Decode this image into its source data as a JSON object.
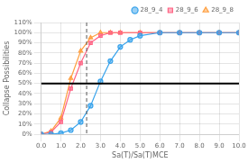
{
  "chart_data": {
    "type": "line",
    "xlabel": "Sa(T)/Sa(T)MCE",
    "ylabel": "Collapse Possibilities",
    "series": [
      {
        "name": "28_9_4",
        "marker": "circle",
        "x": [
          0.0,
          0.5,
          1.0,
          1.5,
          2.0,
          2.5,
          3.0,
          3.5,
          4.0,
          4.5,
          5.0,
          6.0,
          7.0,
          8.0,
          9.0,
          10.0
        ],
        "values": [
          0.0,
          0.0,
          0.01,
          0.04,
          0.12,
          0.28,
          0.52,
          0.72,
          0.86,
          0.93,
          0.97,
          1.0,
          1.0,
          1.0,
          1.0,
          1.0
        ]
      },
      {
        "name": "28_9_6",
        "marker": "square",
        "x": [
          0.0,
          0.5,
          1.0,
          1.5,
          2.0,
          2.5,
          3.0,
          3.5,
          4.0,
          5.0,
          6.0,
          7.0,
          8.0,
          9.0,
          10.0
        ],
        "values": [
          0.0,
          0.02,
          0.12,
          0.45,
          0.7,
          0.9,
          0.97,
          1.0,
          1.0,
          1.0,
          1.0,
          1.0,
          1.0,
          1.0,
          1.0
        ]
      },
      {
        "name": "28_9_8",
        "marker": "triangle",
        "x": [
          0.0,
          0.5,
          1.0,
          1.5,
          2.0,
          2.5,
          3.0,
          3.5,
          4.0,
          5.0,
          6.0,
          7.0,
          8.0,
          9.0,
          10.0
        ],
        "values": [
          0.0,
          0.03,
          0.16,
          0.55,
          0.82,
          0.95,
          1.0,
          1.0,
          1.0,
          1.0,
          1.0,
          1.0,
          1.0,
          1.0,
          1.0
        ]
      }
    ],
    "xlim": [
      0.0,
      10.0
    ],
    "ylim": [
      0.0,
      1.1
    ],
    "xticks": [
      {
        "value": 0.0,
        "label": "0.0"
      },
      {
        "value": 1.0,
        "label": "1.0"
      },
      {
        "value": 2.0,
        "label": "2.0"
      },
      {
        "value": 3.0,
        "label": "3.0"
      },
      {
        "value": 4.0,
        "label": "4.0"
      },
      {
        "value": 5.0,
        "label": "5.0"
      },
      {
        "value": 6.0,
        "label": "6.0"
      },
      {
        "value": 7.0,
        "label": "7.0"
      },
      {
        "value": 8.0,
        "label": "8.0"
      },
      {
        "value": 9.0,
        "label": "9.0"
      },
      {
        "value": 10.0,
        "label": "10.0"
      }
    ],
    "yticks": [
      {
        "value": 0.0,
        "label": "0%"
      },
      {
        "value": 0.1,
        "label": "10%"
      },
      {
        "value": 0.2,
        "label": "20%"
      },
      {
        "value": 0.3,
        "label": "30%"
      },
      {
        "value": 0.4,
        "label": "40%"
      },
      {
        "value": 0.5,
        "label": "50%"
      },
      {
        "value": 0.6,
        "label": "60%"
      },
      {
        "value": 0.7,
        "label": "70%"
      },
      {
        "value": 0.8,
        "label": "80%"
      },
      {
        "value": 0.9,
        "label": "90%"
      },
      {
        "value": 1.0,
        "label": "100%"
      },
      {
        "value": 1.1,
        "label": "110%"
      }
    ],
    "hline": 0.5,
    "vline": 2.3,
    "grid": true,
    "legend": "upper right"
  }
}
